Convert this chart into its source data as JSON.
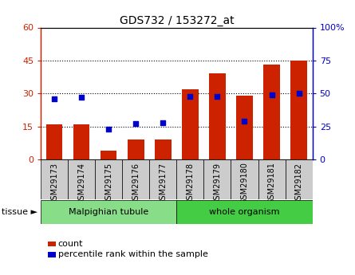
{
  "title": "GDS732 / 153272_at",
  "samples": [
    "GSM29173",
    "GSM29174",
    "GSM29175",
    "GSM29176",
    "GSM29177",
    "GSM29178",
    "GSM29179",
    "GSM29180",
    "GSM29181",
    "GSM29182"
  ],
  "count_values": [
    16,
    16,
    4,
    9,
    9,
    32,
    39,
    29,
    43,
    45
  ],
  "percentile_values": [
    46,
    47,
    23,
    27,
    28,
    48,
    48,
    29,
    49,
    50
  ],
  "tissue_groups": [
    {
      "label": "Malpighian tubule",
      "start": 0,
      "end": 5,
      "color": "#88dd88"
    },
    {
      "label": "whole organism",
      "start": 5,
      "end": 10,
      "color": "#44cc44"
    }
  ],
  "left_ylim": [
    0,
    60
  ],
  "right_ylim": [
    0,
    100
  ],
  "left_yticks": [
    0,
    15,
    30,
    45,
    60
  ],
  "right_yticks": [
    0,
    25,
    50,
    75,
    100
  ],
  "right_yticklabels": [
    "0",
    "25",
    "50",
    "75",
    "100%"
  ],
  "bar_color": "#cc2200",
  "dot_color": "#0000cc",
  "grid_color": "#000000",
  "axis_left_color": "#cc2200",
  "axis_right_color": "#0000cc",
  "background_color": "#ffffff",
  "sample_box_color": "#cccccc",
  "legend_count_label": "count",
  "legend_percentile_label": "percentile rank within the sample",
  "tissue_label": "tissue ►"
}
